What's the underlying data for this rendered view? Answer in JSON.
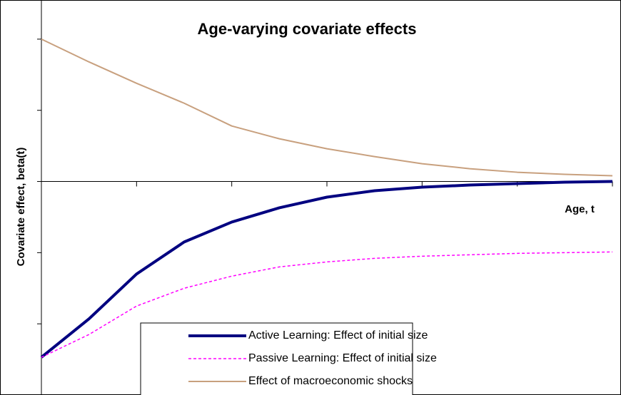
{
  "chart_data": {
    "type": "line",
    "title": "Age-varying covariate effects",
    "x_label": "Age, t",
    "y_label": "Covariate effect, beta(t)",
    "x": [
      0,
      0.5,
      1,
      1.5,
      2,
      2.5,
      3,
      3.5,
      4,
      4.5,
      5,
      5.5,
      6
    ],
    "series": [
      {
        "name": "Active Learning: Effect of initial size",
        "color": "#000080",
        "style": "solid",
        "width": 4,
        "values": [
          -2.47,
          -1.93,
          -1.3,
          -0.85,
          -0.57,
          -0.37,
          -0.22,
          -0.13,
          -0.08,
          -0.05,
          -0.03,
          -0.01,
          0
        ]
      },
      {
        "name": "Passive Learning: Effect of initial size",
        "color": "#ff00ff",
        "style": "dotted",
        "width": 1.5,
        "values": [
          -2.47,
          -2.15,
          -1.75,
          -1.5,
          -1.33,
          -1.2,
          -1.13,
          -1.08,
          -1.05,
          -1.03,
          -1.01,
          -1.0,
          -0.99
        ]
      },
      {
        "name": "Effect of macroeconomic shocks",
        "color": "#c8a07e",
        "style": "solid",
        "width": 2,
        "values": [
          2.0,
          1.68,
          1.38,
          1.1,
          0.78,
          0.6,
          0.46,
          0.35,
          0.25,
          0.18,
          0.13,
          0.1,
          0.08
        ]
      }
    ],
    "xlim": [
      0,
      6
    ],
    "xticks": [
      0,
      1,
      2,
      3,
      4,
      5,
      6
    ],
    "ylim": [
      -3,
      2.55
    ],
    "yticks": [
      -2,
      -1,
      0,
      1,
      2
    ],
    "grid": false,
    "legend": "bottom"
  }
}
